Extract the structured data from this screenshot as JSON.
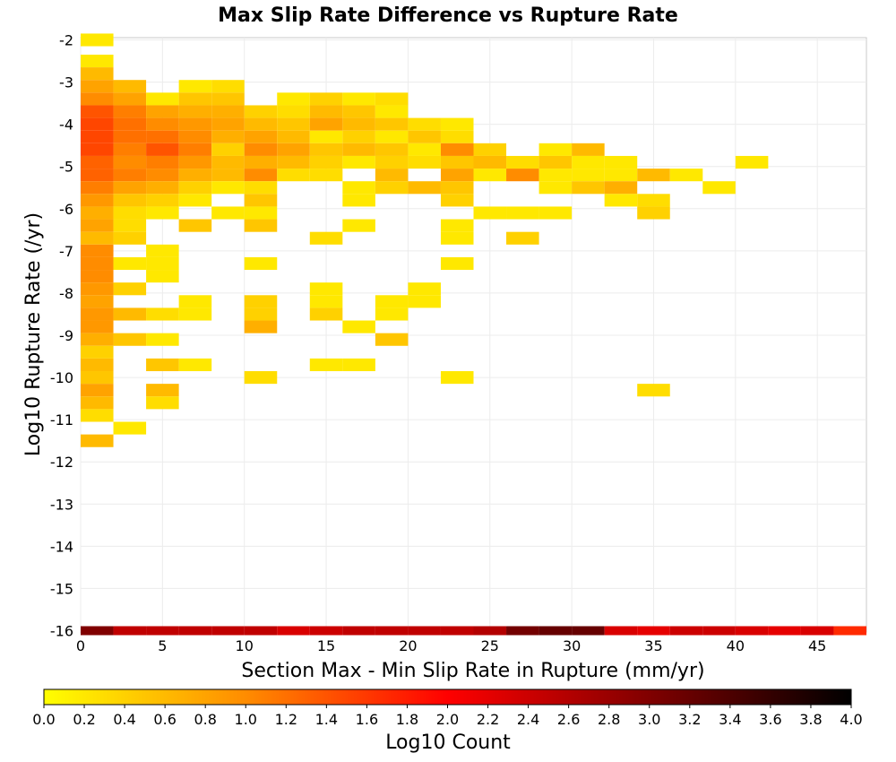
{
  "chart_data": {
    "type": "heatmap",
    "title": "Max Slip Rate Difference vs Rupture Rate",
    "xlabel": "Section Max - Min Slip Rate in Rupture (mm/yr)",
    "ylabel": "Log10 Rupture Rate (/yr)",
    "xlim": [
      0,
      48
    ],
    "ylim": [
      -16,
      -2
    ],
    "bin_width_x": 2,
    "bin_height_y": 0.2,
    "x_ticks": [
      0,
      5,
      10,
      15,
      20,
      25,
      30,
      35,
      40,
      45
    ],
    "y_ticks": [
      -2,
      -3,
      -4,
      -5,
      -6,
      -7,
      -8,
      -9,
      -10,
      -11,
      -12,
      -13,
      -14,
      -15,
      -16
    ],
    "grid": true,
    "colorbar": {
      "label": "Log10 Count",
      "range": [
        0.0,
        4.0
      ],
      "ticks": [
        "0.0",
        "0.2",
        "0.4",
        "0.6",
        "0.8",
        "1.0",
        "1.2",
        "1.4",
        "1.6",
        "1.8",
        "2.0",
        "2.2",
        "2.4",
        "2.6",
        "2.8",
        "3.0",
        "3.2",
        "3.4",
        "3.6",
        "3.8",
        "4.0"
      ],
      "colors": [
        "#ffff00",
        "#ff8c00",
        "#ff0000",
        "#800000",
        "#000000"
      ]
    },
    "cells": [
      [
        1,
        -2.0,
        0.2
      ],
      [
        1,
        -2.5,
        0.2
      ],
      [
        1,
        -2.8,
        0.6
      ],
      [
        1,
        -3.1,
        0.8
      ],
      [
        1,
        -3.4,
        1.0
      ],
      [
        1,
        -3.7,
        1.4
      ],
      [
        1,
        -4.0,
        1.5
      ],
      [
        1,
        -4.3,
        1.5
      ],
      [
        1,
        -4.6,
        1.5
      ],
      [
        1,
        -4.9,
        1.3
      ],
      [
        1,
        -5.2,
        1.3
      ],
      [
        1,
        -5.5,
        1.1
      ],
      [
        1,
        -5.8,
        0.9
      ],
      [
        1,
        -6.1,
        0.7
      ],
      [
        1,
        -6.4,
        0.8
      ],
      [
        1,
        -6.7,
        0.6
      ],
      [
        1,
        -7.0,
        1.0
      ],
      [
        1,
        -7.3,
        1.0
      ],
      [
        1,
        -7.6,
        1.0
      ],
      [
        1,
        -7.9,
        0.9
      ],
      [
        1,
        -8.2,
        0.8
      ],
      [
        1,
        -8.5,
        0.9
      ],
      [
        1,
        -8.8,
        0.9
      ],
      [
        1,
        -9.1,
        0.7
      ],
      [
        1,
        -9.4,
        0.4
      ],
      [
        1,
        -9.7,
        0.6
      ],
      [
        1,
        -10.0,
        0.5
      ],
      [
        1,
        -10.3,
        0.8
      ],
      [
        1,
        -10.6,
        0.6
      ],
      [
        1,
        -10.9,
        0.3
      ],
      [
        1,
        -11.5,
        0.6
      ],
      [
        3,
        -3.1,
        0.6
      ],
      [
        3,
        -3.4,
        0.8
      ],
      [
        3,
        -3.7,
        1.1
      ],
      [
        3,
        -4.0,
        1.2
      ],
      [
        3,
        -4.3,
        1.2
      ],
      [
        3,
        -4.6,
        1.1
      ],
      [
        3,
        -4.9,
        1.0
      ],
      [
        3,
        -5.2,
        1.1
      ],
      [
        3,
        -5.5,
        0.8
      ],
      [
        3,
        -5.8,
        0.5
      ],
      [
        3,
        -6.1,
        0.3
      ],
      [
        3,
        -6.4,
        0.3
      ],
      [
        3,
        -6.7,
        0.4
      ],
      [
        3,
        -7.3,
        0.2
      ],
      [
        3,
        -7.9,
        0.4
      ],
      [
        3,
        -8.5,
        0.6
      ],
      [
        3,
        -9.1,
        0.5
      ],
      [
        3,
        -11.2,
        0.2
      ],
      [
        5,
        -3.4,
        0.2
      ],
      [
        5,
        -3.7,
        0.8
      ],
      [
        5,
        -4.0,
        1.0
      ],
      [
        5,
        -4.3,
        1.2
      ],
      [
        5,
        -4.6,
        1.4
      ],
      [
        5,
        -4.9,
        1.1
      ],
      [
        5,
        -5.2,
        1.0
      ],
      [
        5,
        -5.5,
        0.7
      ],
      [
        5,
        -5.8,
        0.4
      ],
      [
        5,
        -6.1,
        0.2
      ],
      [
        5,
        -7.0,
        0.2
      ],
      [
        5,
        -7.3,
        0.2
      ],
      [
        5,
        -7.6,
        0.2
      ],
      [
        5,
        -8.5,
        0.3
      ],
      [
        5,
        -9.1,
        0.2
      ],
      [
        5,
        -9.7,
        0.5
      ],
      [
        5,
        -10.3,
        0.6
      ],
      [
        5,
        -10.6,
        0.3
      ],
      [
        7,
        -3.1,
        0.2
      ],
      [
        7,
        -3.4,
        0.5
      ],
      [
        7,
        -3.7,
        0.7
      ],
      [
        7,
        -4.0,
        0.9
      ],
      [
        7,
        -4.3,
        1.0
      ],
      [
        7,
        -4.6,
        1.1
      ],
      [
        7,
        -4.9,
        0.9
      ],
      [
        7,
        -5.2,
        0.7
      ],
      [
        7,
        -5.5,
        0.4
      ],
      [
        7,
        -5.8,
        0.2
      ],
      [
        7,
        -6.4,
        0.5
      ],
      [
        7,
        -8.2,
        0.2
      ],
      [
        7,
        -8.5,
        0.2
      ],
      [
        7,
        -9.7,
        0.2
      ],
      [
        9,
        -3.1,
        0.3
      ],
      [
        9,
        -3.4,
        0.5
      ],
      [
        9,
        -3.7,
        0.7
      ],
      [
        9,
        -4.0,
        0.8
      ],
      [
        9,
        -4.3,
        0.7
      ],
      [
        9,
        -4.6,
        0.4
      ],
      [
        9,
        -4.9,
        0.6
      ],
      [
        9,
        -5.2,
        0.6
      ],
      [
        9,
        -5.5,
        0.2
      ],
      [
        9,
        -6.1,
        0.2
      ],
      [
        11,
        -3.7,
        0.4
      ],
      [
        11,
        -4.0,
        0.6
      ],
      [
        11,
        -4.3,
        0.8
      ],
      [
        11,
        -4.6,
        1.0
      ],
      [
        11,
        -4.9,
        0.7
      ],
      [
        11,
        -5.2,
        1.0
      ],
      [
        11,
        -5.5,
        0.3
      ],
      [
        11,
        -5.8,
        0.5
      ],
      [
        11,
        -6.1,
        0.2
      ],
      [
        11,
        -6.4,
        0.5
      ],
      [
        11,
        -7.3,
        0.2
      ],
      [
        11,
        -8.2,
        0.4
      ],
      [
        11,
        -8.5,
        0.4
      ],
      [
        11,
        -8.8,
        0.7
      ],
      [
        11,
        -10.0,
        0.3
      ],
      [
        13,
        -3.4,
        0.2
      ],
      [
        13,
        -3.7,
        0.3
      ],
      [
        13,
        -4.0,
        0.5
      ],
      [
        13,
        -4.3,
        0.6
      ],
      [
        13,
        -4.6,
        0.8
      ],
      [
        13,
        -4.9,
        0.6
      ],
      [
        13,
        -5.2,
        0.3
      ],
      [
        15,
        -3.4,
        0.4
      ],
      [
        15,
        -3.7,
        0.6
      ],
      [
        15,
        -4.0,
        0.8
      ],
      [
        15,
        -4.3,
        0.2
      ],
      [
        15,
        -4.6,
        0.5
      ],
      [
        15,
        -4.9,
        0.4
      ],
      [
        15,
        -5.2,
        0.3
      ],
      [
        15,
        -6.7,
        0.3
      ],
      [
        15,
        -7.9,
        0.2
      ],
      [
        15,
        -8.2,
        0.2
      ],
      [
        15,
        -8.5,
        0.4
      ],
      [
        15,
        -9.7,
        0.2
      ],
      [
        17,
        -3.4,
        0.2
      ],
      [
        17,
        -3.7,
        0.5
      ],
      [
        17,
        -4.0,
        0.6
      ],
      [
        17,
        -4.3,
        0.4
      ],
      [
        17,
        -4.6,
        0.6
      ],
      [
        17,
        -4.9,
        0.2
      ],
      [
        17,
        -5.5,
        0.2
      ],
      [
        17,
        -5.8,
        0.2
      ],
      [
        17,
        -6.4,
        0.2
      ],
      [
        17,
        -8.8,
        0.2
      ],
      [
        17,
        -9.7,
        0.2
      ],
      [
        19,
        -3.4,
        0.3
      ],
      [
        19,
        -3.7,
        0.2
      ],
      [
        19,
        -4.0,
        0.5
      ],
      [
        19,
        -4.3,
        0.2
      ],
      [
        19,
        -4.6,
        0.5
      ],
      [
        19,
        -4.9,
        0.4
      ],
      [
        19,
        -5.2,
        0.6
      ],
      [
        19,
        -5.5,
        0.4
      ],
      [
        19,
        -8.2,
        0.2
      ],
      [
        19,
        -8.5,
        0.2
      ],
      [
        19,
        -9.1,
        0.5
      ],
      [
        21,
        -4.0,
        0.3
      ],
      [
        21,
        -4.3,
        0.5
      ],
      [
        21,
        -4.6,
        0.2
      ],
      [
        21,
        -4.9,
        0.3
      ],
      [
        21,
        -5.5,
        0.6
      ],
      [
        21,
        -7.9,
        0.2
      ],
      [
        21,
        -8.2,
        0.2
      ],
      [
        23,
        -4.0,
        0.2
      ],
      [
        23,
        -4.3,
        0.3
      ],
      [
        23,
        -4.6,
        1.0
      ],
      [
        23,
        -4.9,
        0.5
      ],
      [
        23,
        -5.2,
        0.8
      ],
      [
        23,
        -5.5,
        0.5
      ],
      [
        23,
        -5.8,
        0.4
      ],
      [
        23,
        -6.4,
        0.2
      ],
      [
        23,
        -6.7,
        0.2
      ],
      [
        23,
        -7.3,
        0.2
      ],
      [
        23,
        -10.0,
        0.2
      ],
      [
        25,
        -4.6,
        0.4
      ],
      [
        25,
        -4.9,
        0.6
      ],
      [
        25,
        -5.2,
        0.2
      ],
      [
        25,
        -6.1,
        0.2
      ],
      [
        27,
        -4.9,
        0.3
      ],
      [
        27,
        -5.2,
        1.0
      ],
      [
        27,
        -6.1,
        0.2
      ],
      [
        27,
        -6.7,
        0.4
      ],
      [
        29,
        -4.6,
        0.2
      ],
      [
        29,
        -4.9,
        0.5
      ],
      [
        29,
        -5.2,
        0.2
      ],
      [
        29,
        -5.5,
        0.2
      ],
      [
        29,
        -6.1,
        0.2
      ],
      [
        31,
        -4.6,
        0.6
      ],
      [
        31,
        -4.9,
        0.2
      ],
      [
        31,
        -5.2,
        0.2
      ],
      [
        31,
        -5.5,
        0.5
      ],
      [
        33,
        -4.9,
        0.2
      ],
      [
        33,
        -5.2,
        0.2
      ],
      [
        33,
        -5.5,
        0.7
      ],
      [
        33,
        -5.8,
        0.2
      ],
      [
        35,
        -5.2,
        0.6
      ],
      [
        35,
        -5.8,
        0.3
      ],
      [
        35,
        -6.1,
        0.4
      ],
      [
        35,
        -10.3,
        0.3
      ],
      [
        37,
        -5.2,
        0.2
      ],
      [
        39,
        -5.5,
        0.2
      ],
      [
        41,
        -4.9,
        0.2
      ]
    ],
    "floor_row": {
      "y": -16,
      "values": [
        3.0,
        2.5,
        2.5,
        2.5,
        2.5,
        2.5,
        2.3,
        2.4,
        2.5,
        2.5,
        2.5,
        2.5,
        2.6,
        3.1,
        3.2,
        3.2,
        2.3,
        2.2,
        2.4,
        2.4,
        2.3,
        2.2,
        2.3,
        1.7
      ]
    }
  }
}
